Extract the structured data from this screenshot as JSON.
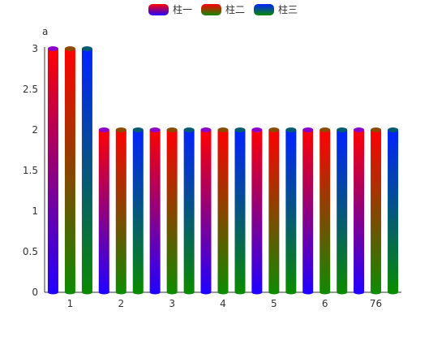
{
  "chart_data": {
    "type": "bar",
    "y_unit": "a",
    "categories": [
      "1",
      "2",
      "3",
      "4",
      "5",
      "6",
      "76"
    ],
    "ylim": [
      0,
      3
    ],
    "yticks": [
      "0",
      "0.5",
      "1",
      "1.5",
      "2",
      "2.5",
      "3"
    ],
    "grid": false,
    "legend_position": "top-center",
    "series": [
      {
        "name": "柱一",
        "values": [
          3,
          2,
          2,
          2,
          2,
          2,
          2
        ],
        "top_color": "#ff0000",
        "bottom_color": "#2200ff",
        "cap_color": "#8a00c8"
      },
      {
        "name": "柱二",
        "values": [
          3,
          2,
          2,
          2,
          2,
          2,
          2
        ],
        "top_color": "#ff0000",
        "bottom_color": "#108a00",
        "cap_color": "#8a4a00"
      },
      {
        "name": "柱三",
        "values": [
          3,
          2,
          2,
          2,
          2,
          2,
          2
        ],
        "top_color": "#0022ff",
        "bottom_color": "#0a8a00",
        "cap_color": "#005a70"
      }
    ]
  }
}
